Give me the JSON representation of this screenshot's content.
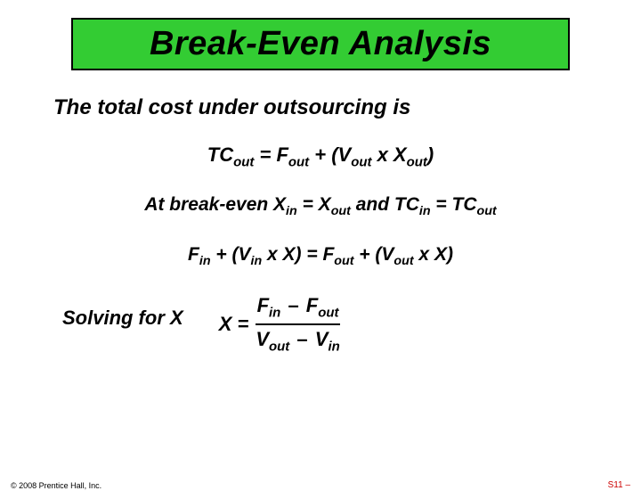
{
  "title": {
    "text": "Break-Even Analysis",
    "bg_color": "#33cc33",
    "border_color": "#000000",
    "text_color": "#000000",
    "font_size": 38
  },
  "intro": "The total cost under outsourcing is",
  "equations": {
    "eq1_pre": "TC",
    "eq1_sub1": "out",
    "eq1_mid1": " = F",
    "eq1_sub2": "out",
    "eq1_mid2": " + (V",
    "eq1_sub3": "out",
    "eq1_mid3": " x X",
    "eq1_sub4": "out",
    "eq1_end": ")",
    "eq2_pre": "At break-even X",
    "eq2_sub1": "in",
    "eq2_mid1": " = X",
    "eq2_sub2": "out",
    "eq2_mid2": " and TC",
    "eq2_sub3": "in",
    "eq2_mid3": " = TC",
    "eq2_sub4": "out",
    "eq3_pre": "F",
    "eq3_sub1": "in",
    "eq3_mid1": " + (V",
    "eq3_sub2": "in",
    "eq3_mid2": " x X) = F",
    "eq3_sub3": "out",
    "eq3_mid3": " + (V",
    "eq3_sub4": "out",
    "eq3_end": " x X)"
  },
  "solving": {
    "label": "Solving for X",
    "lhs": "X =",
    "num_pre": "F",
    "num_sub1": "in",
    "num_minus": "–",
    "num_mid": " F",
    "num_sub2": "out",
    "den_pre": "V",
    "den_sub1": "out",
    "den_minus": "–",
    "den_mid": " V",
    "den_sub2": "in"
  },
  "footer": {
    "copyright": "© 2008 Prentice Hall, Inc.",
    "slide_number": "S11 –",
    "slide_color": "#cc0000"
  },
  "colors": {
    "page_bg": "#ffffff",
    "text": "#000000"
  }
}
